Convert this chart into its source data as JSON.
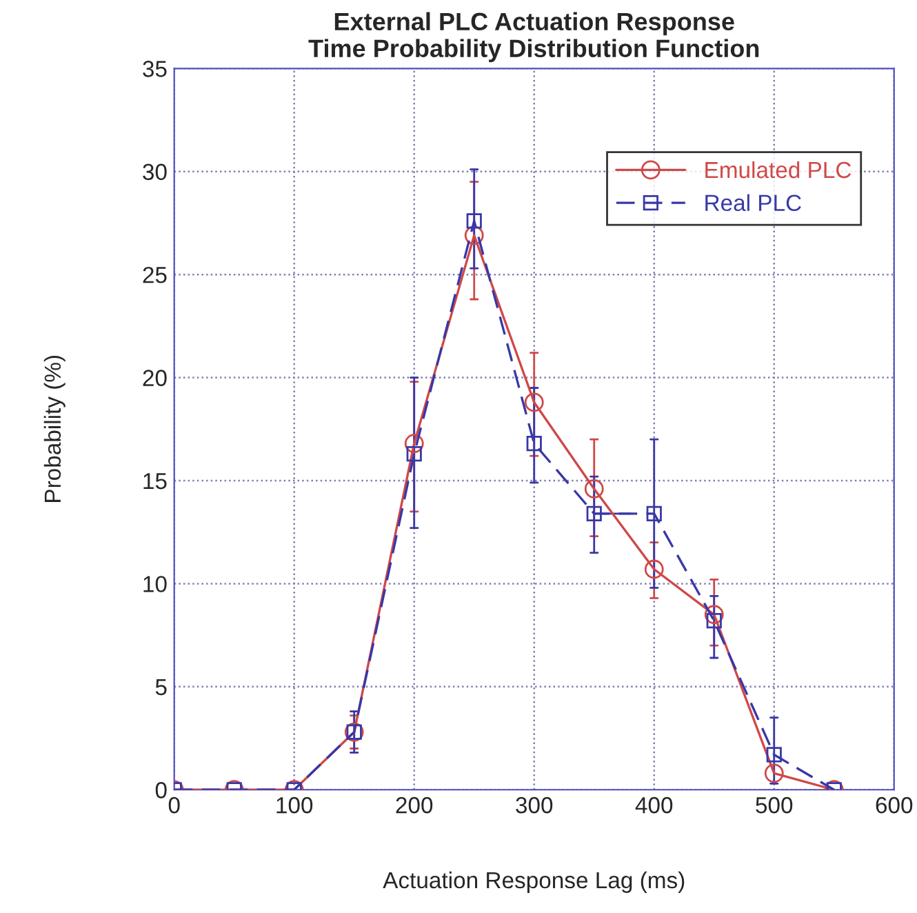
{
  "chart_data": {
    "type": "line",
    "title": "External PLC Actuation Response\nTime Probability Distribution Function",
    "xlabel": "Actuation Response Lag (ms)",
    "ylabel": "Probability (%)",
    "x": [
      0,
      50,
      100,
      150,
      200,
      250,
      300,
      350,
      400,
      450,
      500,
      550
    ],
    "series": [
      {
        "name": "Emulated PLC",
        "color": "#d04848",
        "marker": "circle",
        "line_style": "solid",
        "values": [
          0,
          0,
          0,
          2.8,
          16.8,
          26.9,
          18.8,
          14.6,
          10.7,
          8.5,
          0.8,
          0
        ],
        "errors": [
          null,
          null,
          null,
          [
            2.0,
            3.6
          ],
          [
            13.5,
            19.8
          ],
          [
            23.8,
            29.5
          ],
          [
            16.2,
            21.2
          ],
          [
            12.3,
            17.0
          ],
          [
            9.3,
            12.0
          ],
          [
            7.0,
            10.2
          ],
          null,
          null
        ]
      },
      {
        "name": "Real PLC",
        "color": "#3838a8",
        "marker": "square",
        "line_style": "dashed",
        "values": [
          0,
          0,
          0,
          2.8,
          16.3,
          27.6,
          16.8,
          13.4,
          13.4,
          8.2,
          1.7,
          0
        ],
        "errors": [
          null,
          null,
          null,
          [
            1.8,
            3.8
          ],
          [
            12.7,
            20.0
          ],
          [
            25.3,
            30.1
          ],
          [
            14.9,
            19.5
          ],
          [
            11.5,
            15.2
          ],
          [
            9.8,
            17.0
          ],
          [
            6.4,
            9.4
          ],
          [
            0.3,
            3.5
          ],
          null
        ],
        "xerrors": [
          null,
          null,
          null,
          null,
          null,
          null,
          null,
          [
            350,
            380
          ],
          null,
          null,
          null,
          null
        ]
      }
    ],
    "xlim": [
      0,
      600
    ],
    "xticks": [
      0,
      100,
      200,
      300,
      400,
      500,
      600
    ],
    "ylim": [
      0,
      35
    ],
    "yticks": [
      0,
      5,
      10,
      15,
      20,
      25,
      30,
      35
    ],
    "grid": true,
    "legend": "top right"
  }
}
